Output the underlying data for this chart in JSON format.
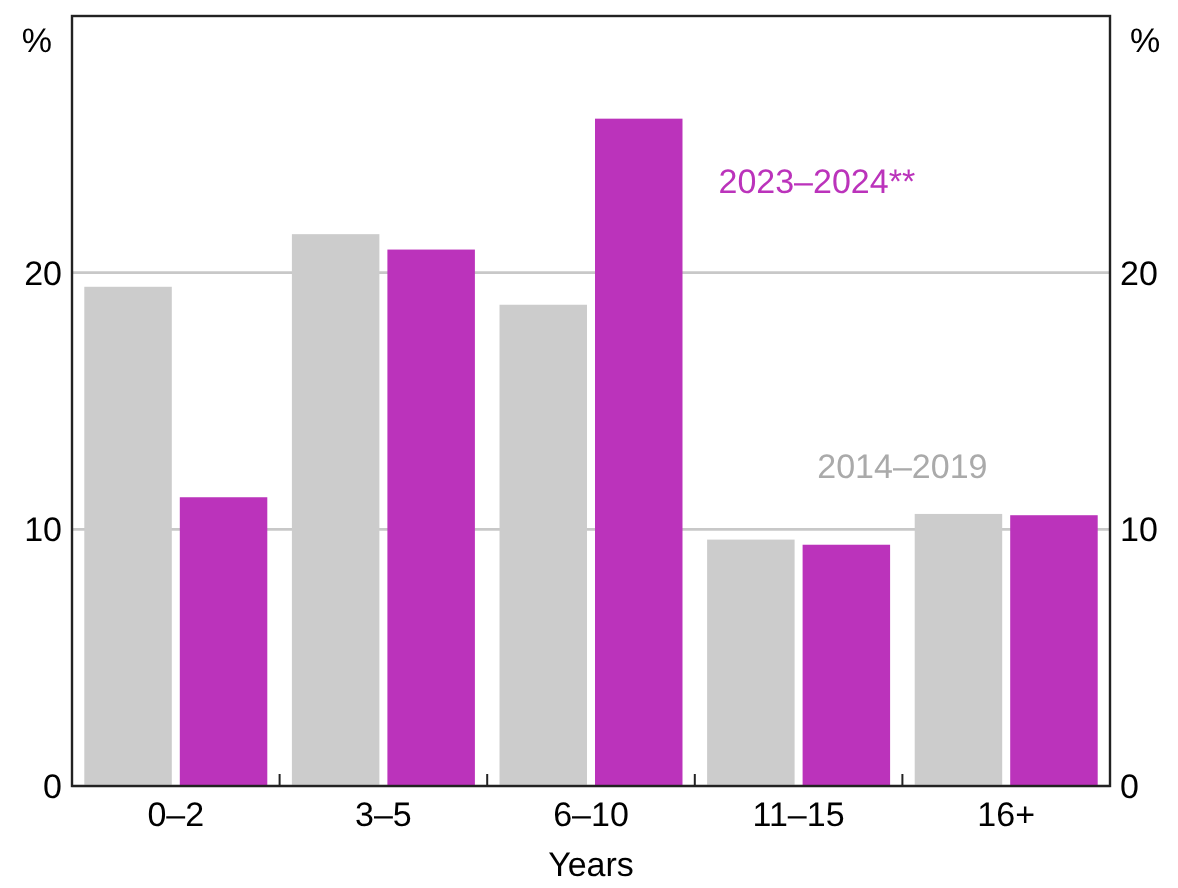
{
  "chart_data": {
    "type": "bar",
    "xlabel": "Years",
    "ylabel": "%",
    "y2label": "%",
    "categories": [
      "0–2",
      "3–5",
      "6–10",
      "11–15",
      "16+"
    ],
    "series": [
      {
        "name": "2014–2019",
        "color": "#cccccc",
        "values": [
          19.45,
          21.5,
          18.75,
          9.6,
          10.6
        ]
      },
      {
        "name": "2023–2024**",
        "color": "#bb33bb",
        "values": [
          11.25,
          20.9,
          26.0,
          9.4,
          10.55
        ]
      }
    ],
    "ylim": [
      0,
      30
    ],
    "yticks": [
      0,
      10,
      20
    ],
    "y2lim": [
      0,
      30
    ],
    "y2ticks": [
      0,
      10,
      20
    ],
    "grid": "y",
    "legend": false
  }
}
